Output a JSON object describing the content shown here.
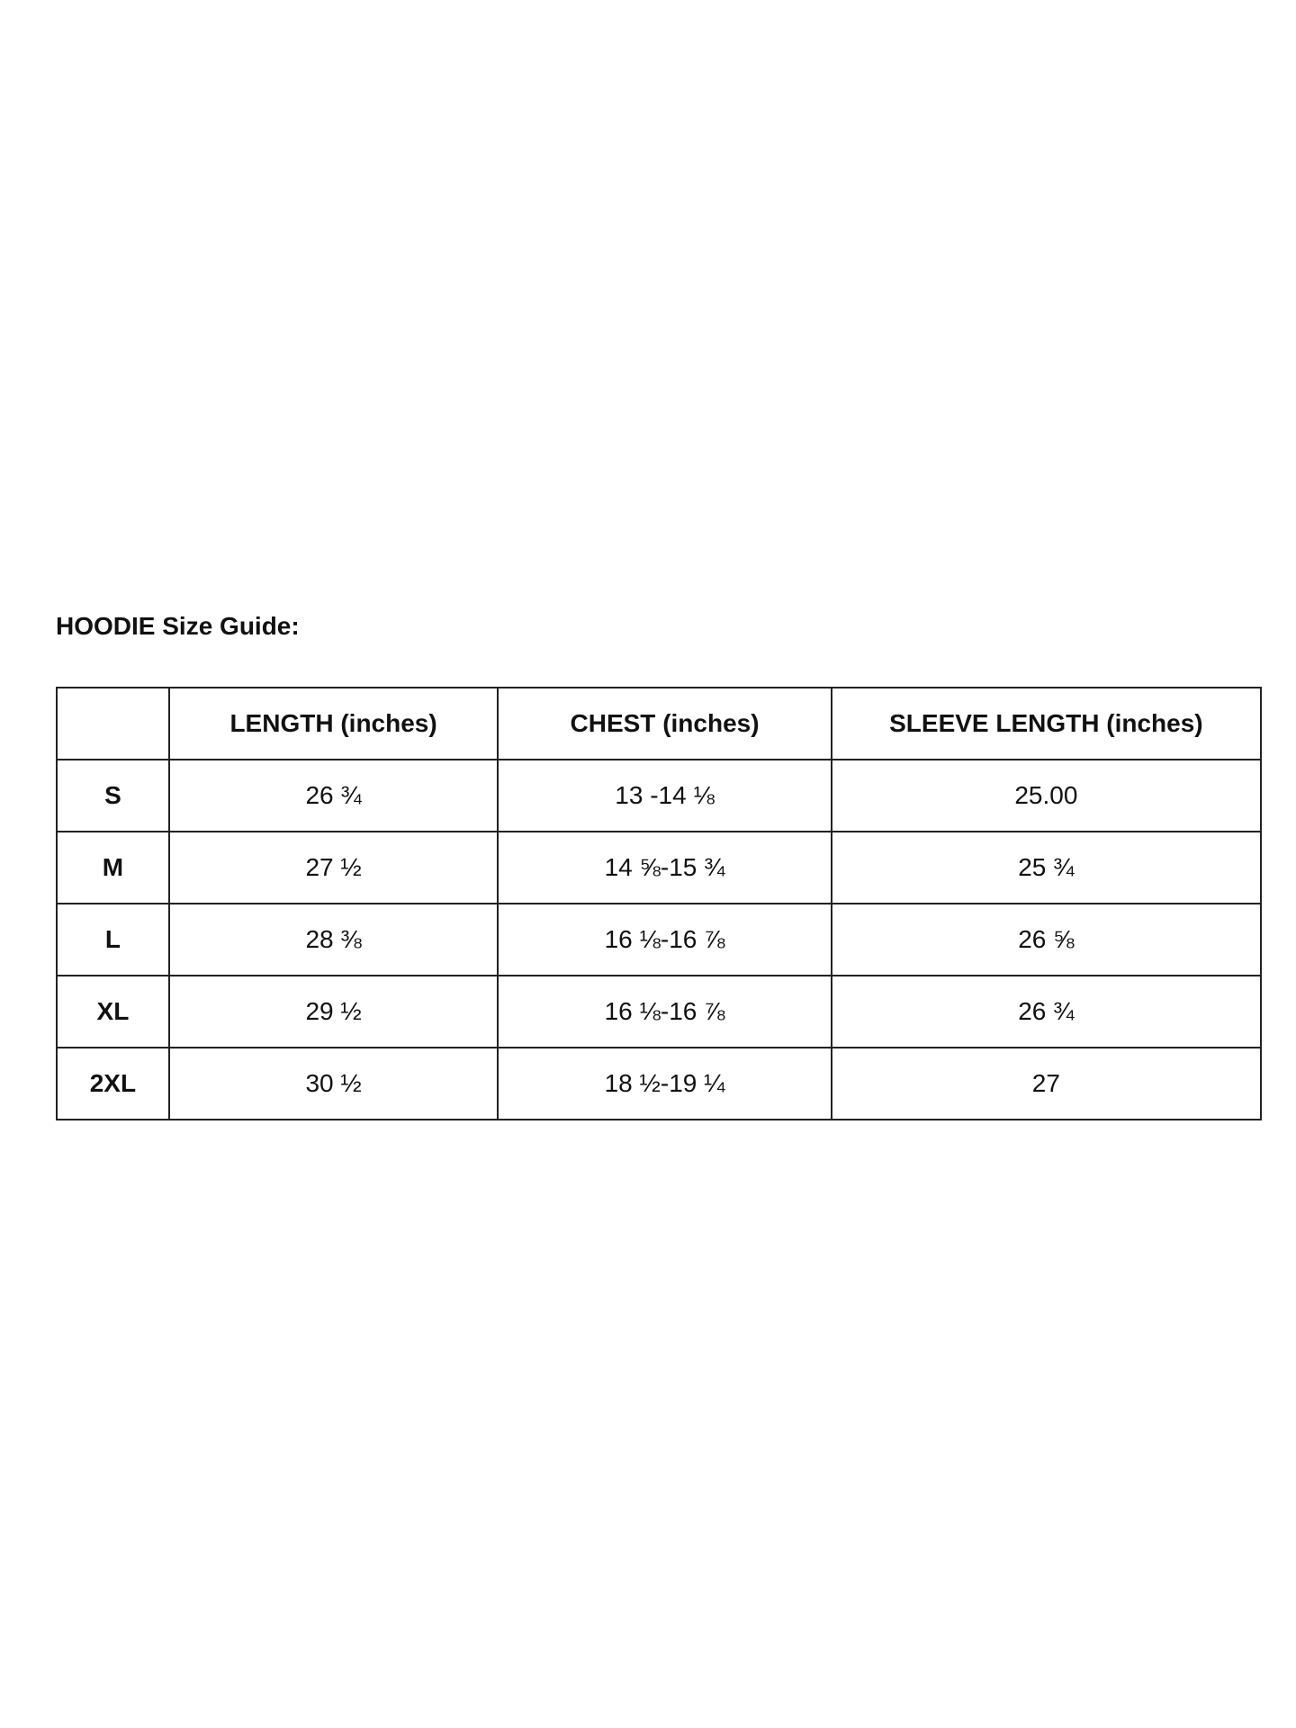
{
  "title": "HOODIE Size Guide:",
  "table": {
    "headers": [
      "",
      "LENGTH (inches)",
      "CHEST (inches)",
      "SLEEVE LENGTH (inches)"
    ],
    "rows": [
      [
        "S",
        "26 ¾",
        "13 -14 ⅛",
        "25.00"
      ],
      [
        "M",
        "27 ½",
        "14 ⅝-15 ¾",
        "25 ¾"
      ],
      [
        "L",
        "28 ⅜",
        "16 ⅛-16 ⅞",
        "26 ⅝"
      ],
      [
        "XL",
        "29 ½",
        "16 ⅛-16 ⅞",
        "26 ¾"
      ],
      [
        "2XL",
        "30 ½",
        "18 ½-19 ¼",
        "27"
      ]
    ]
  }
}
